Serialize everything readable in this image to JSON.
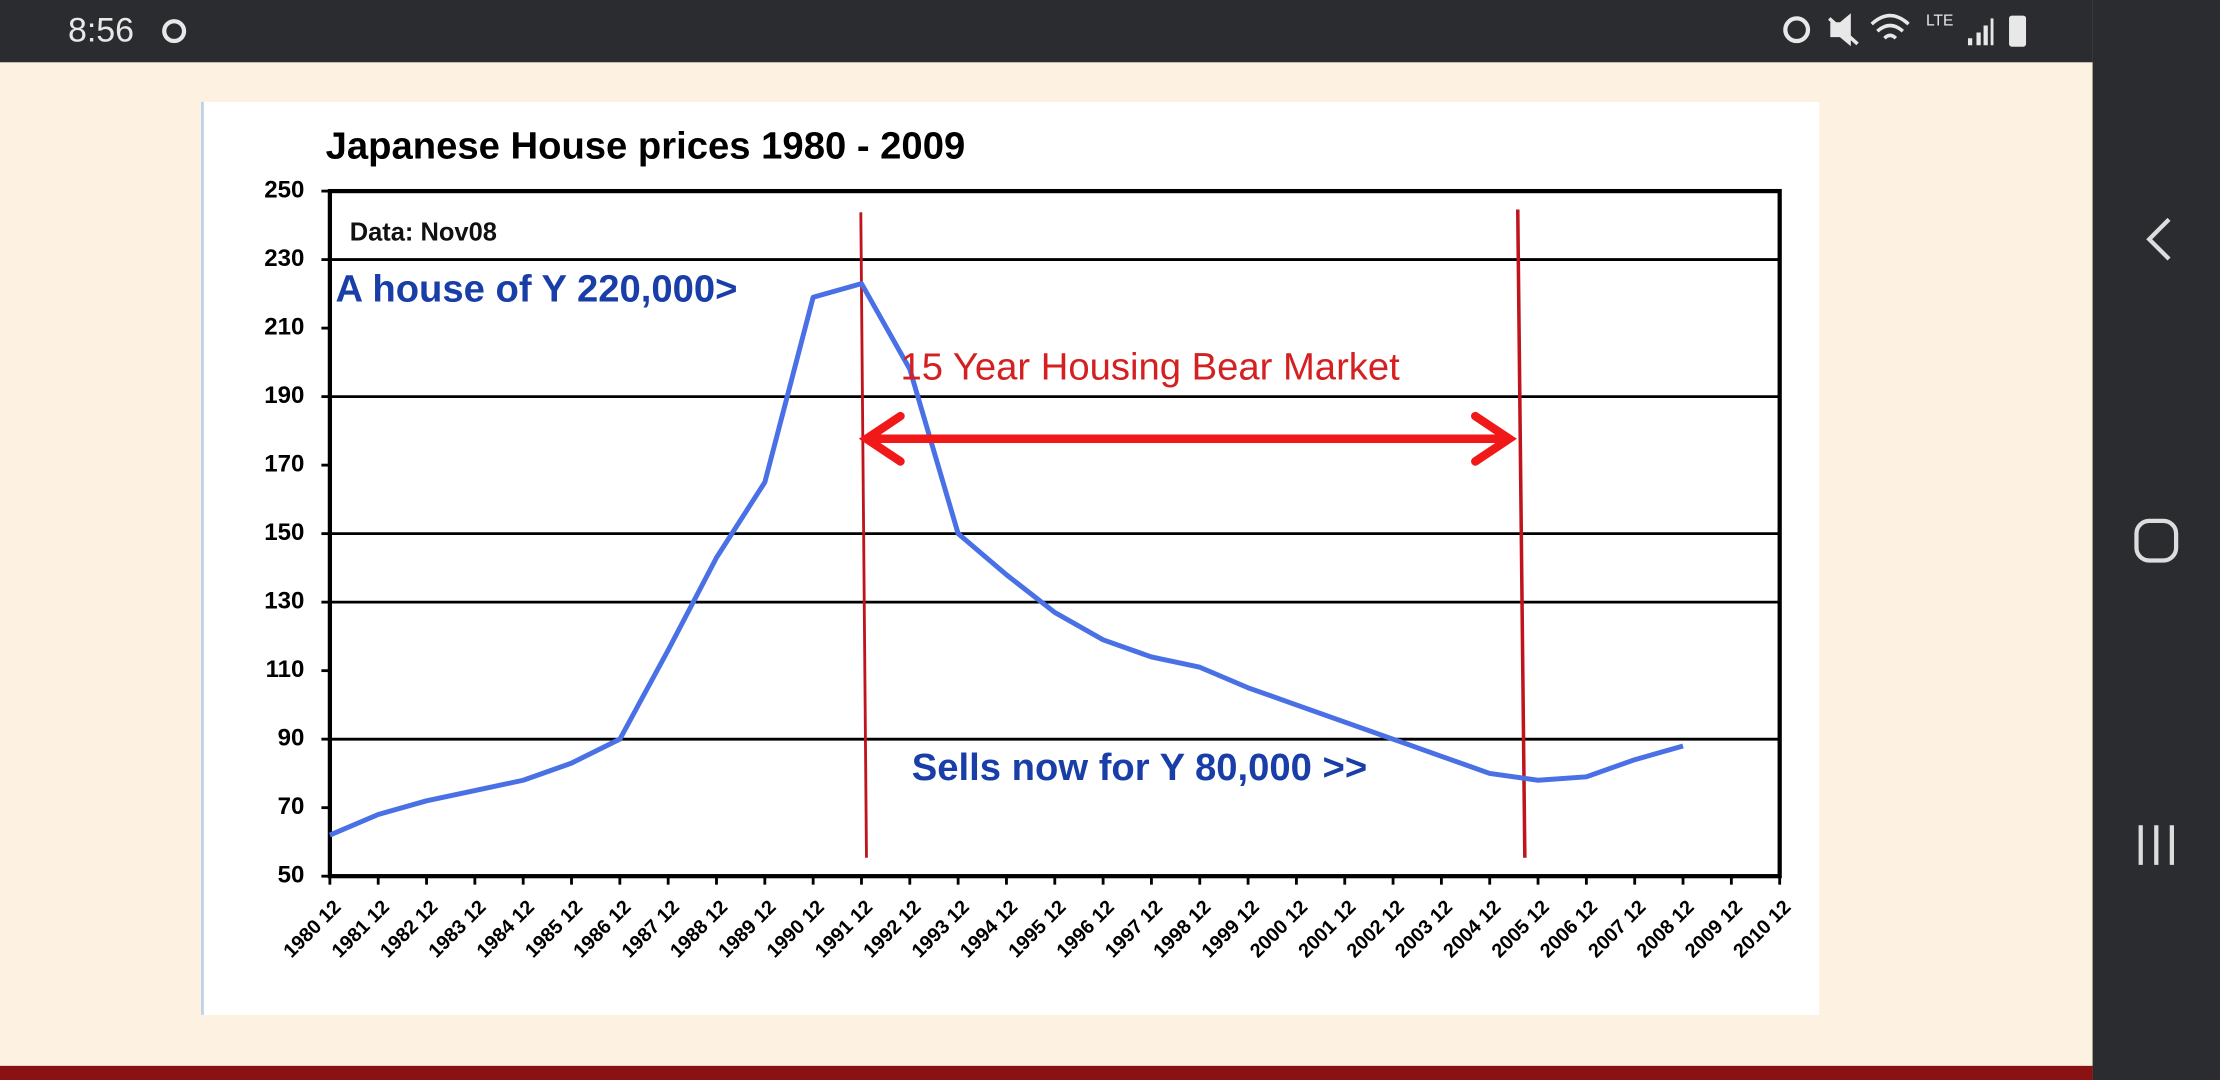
{
  "status_bar": {
    "time": "8:56",
    "network": "LTE"
  },
  "chart_data": {
    "type": "line",
    "title": "Japanese House prices 1980 - 2009",
    "categories": [
      "1980 12",
      "1981 12",
      "1982 12",
      "1983 12",
      "1984 12",
      "1985 12",
      "1986 12",
      "1987 12",
      "1988 12",
      "1989 12",
      "1990 12",
      "1991 12",
      "1992 12",
      "1993 12",
      "1994 12",
      "1995 12",
      "1996 12",
      "1997 12",
      "1998 12",
      "1999 12",
      "2000 12",
      "2001 12",
      "2002 12",
      "2003 12",
      "2004 12",
      "2005 12",
      "2006 12",
      "2007 12",
      "2008 12",
      "2009 12",
      "2010 12"
    ],
    "series": [
      {
        "name": "House prices",
        "color": "#4a70e6",
        "values": [
          62,
          68,
          72,
          75,
          78,
          83,
          90,
          116,
          143,
          165,
          219,
          223,
          198,
          150,
          138,
          127,
          119,
          114,
          111,
          105,
          100,
          95,
          90,
          85,
          80,
          78,
          79,
          84,
          88,
          null,
          null
        ]
      }
    ],
    "ylim": [
      50,
      250
    ],
    "yticks": [
      50,
      70,
      90,
      110,
      130,
      150,
      170,
      190,
      210,
      230,
      250
    ],
    "grid_values": [
      230,
      190,
      150,
      130,
      90
    ],
    "annotations": [
      "Data: Nov08",
      "A house of Y 220,000>",
      "15 Year Housing Bear Market",
      "Sells now for Y 80,000 >>"
    ]
  }
}
